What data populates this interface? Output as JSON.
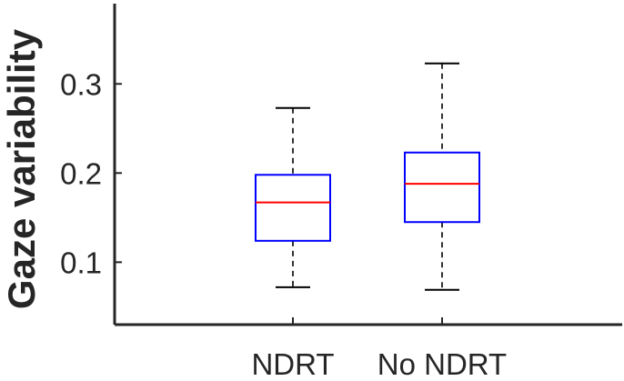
{
  "chart_data": {
    "type": "box",
    "xlabel": "",
    "ylabel": "Gaze variability",
    "ylim": [
      0.03,
      0.39
    ],
    "yticks": [
      0.1,
      0.2,
      0.3
    ],
    "ytick_labels": [
      "0.1",
      "0.2",
      "0.3"
    ],
    "categories": [
      "NDRT",
      "No NDRT"
    ],
    "boxes": [
      {
        "category": "NDRT",
        "min": 0.072,
        "q1": 0.124,
        "median": 0.167,
        "q3": 0.198,
        "max": 0.273
      },
      {
        "category": "No NDRT",
        "min": 0.069,
        "q1": 0.145,
        "median": 0.188,
        "q3": 0.223,
        "max": 0.323
      }
    ],
    "grid": false,
    "legend": "none",
    "colors": {
      "box": "#0000ff",
      "median": "#ff0000",
      "whisker": "#000000",
      "axis": "#262626"
    }
  }
}
